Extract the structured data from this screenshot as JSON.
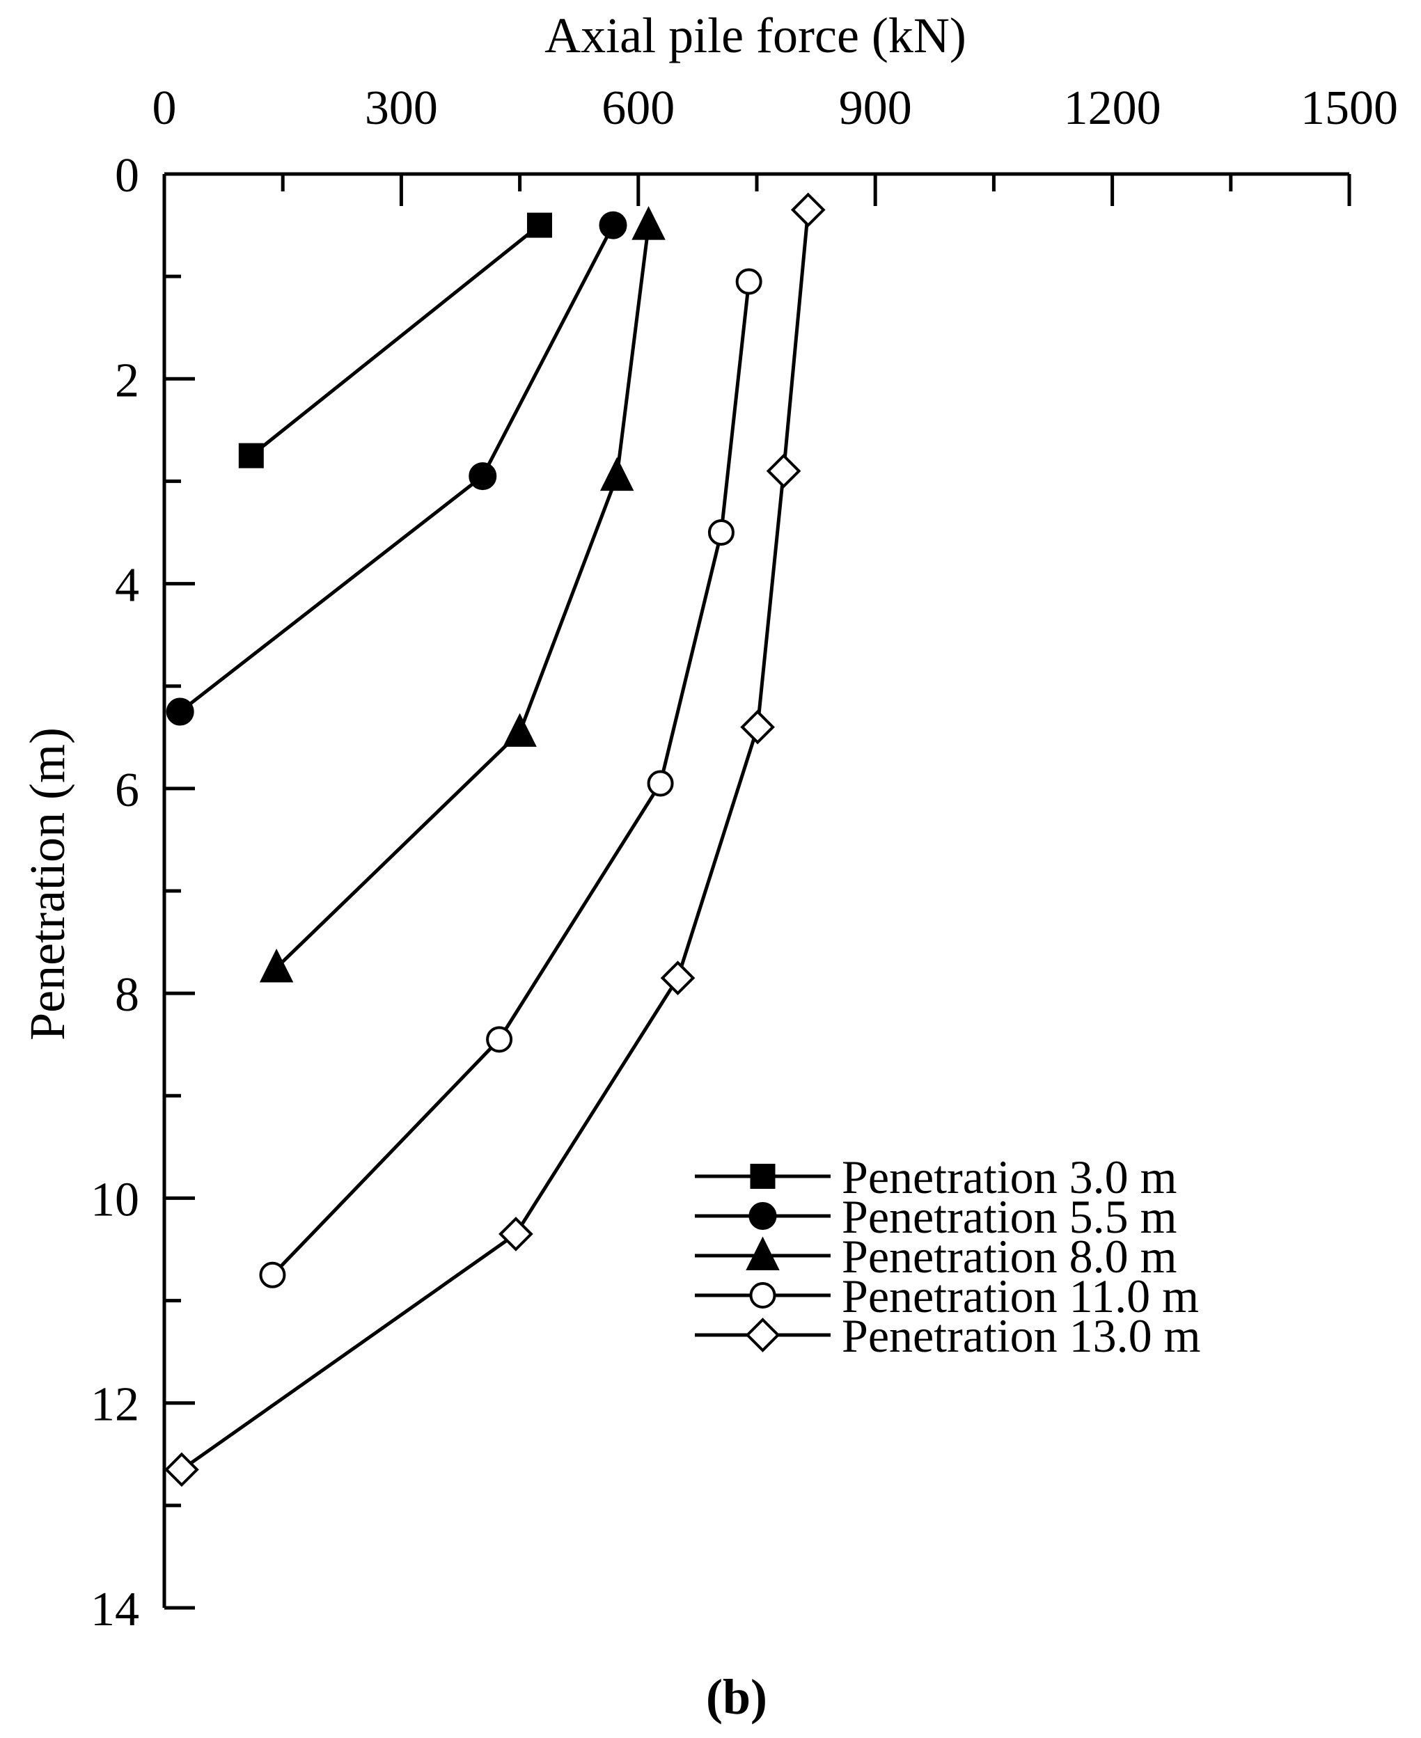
{
  "chart_data": {
    "type": "line",
    "title": "",
    "caption": "(b)",
    "xlabel": "Axial pile force (kN)",
    "ylabel": "Penetration (m)",
    "x_axis_position": "top",
    "y_axis_inverted": true,
    "xlim": [
      0,
      1500
    ],
    "ylim": [
      0,
      14
    ],
    "x_ticks": [
      0,
      300,
      600,
      900,
      1200,
      1500
    ],
    "y_ticks": [
      0,
      2,
      4,
      6,
      8,
      10,
      12,
      14
    ],
    "grid": false,
    "legend_position": "bottom-right",
    "series": [
      {
        "name": "Penetration 3.0 m",
        "marker": "square-filled",
        "points": [
          {
            "force": 475,
            "depth": 0.5
          },
          {
            "force": 110,
            "depth": 2.75
          }
        ]
      },
      {
        "name": "Penetration 5.5 m",
        "marker": "circle-filled",
        "points": [
          {
            "force": 568,
            "depth": 0.5
          },
          {
            "force": 403,
            "depth": 2.95
          },
          {
            "force": 20,
            "depth": 5.25
          }
        ]
      },
      {
        "name": "Penetration 8.0 m",
        "marker": "triangle-filled",
        "points": [
          {
            "force": 613,
            "depth": 0.5
          },
          {
            "force": 573,
            "depth": 2.95
          },
          {
            "force": 450,
            "depth": 5.45
          },
          {
            "force": 142,
            "depth": 7.75
          }
        ]
      },
      {
        "name": "Penetration 11.0 m",
        "marker": "circle-open",
        "points": [
          {
            "force": 740,
            "depth": 1.05
          },
          {
            "force": 705,
            "depth": 3.5
          },
          {
            "force": 628,
            "depth": 5.95
          },
          {
            "force": 424,
            "depth": 8.45
          },
          {
            "force": 137,
            "depth": 10.75
          }
        ]
      },
      {
        "name": "Penetration 13.0 m",
        "marker": "diamond-open",
        "points": [
          {
            "force": 815,
            "depth": 0.35
          },
          {
            "force": 784,
            "depth": 2.9
          },
          {
            "force": 751,
            "depth": 5.4
          },
          {
            "force": 650,
            "depth": 7.85
          },
          {
            "force": 445,
            "depth": 10.35
          },
          {
            "force": 22,
            "depth": 12.65
          }
        ]
      }
    ]
  }
}
